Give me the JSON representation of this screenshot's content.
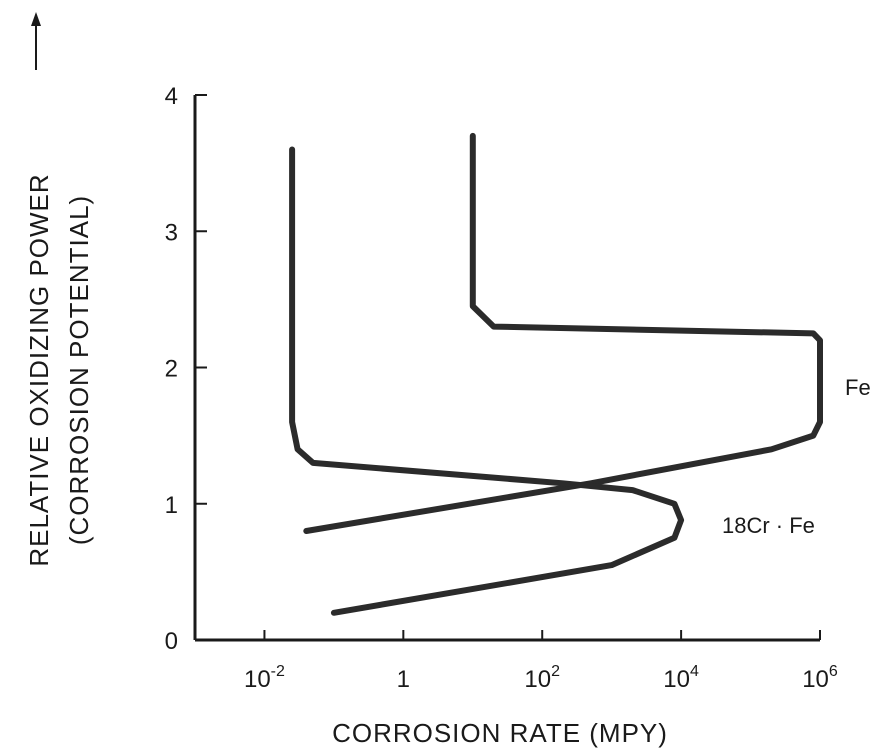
{
  "chart_data": {
    "type": "line",
    "xlabel": "CORROSION RATE (MPY)",
    "ylabel_lines": [
      "RELATIVE OXIDIZING POWER",
      "(CORROSION POTENTIAL)"
    ],
    "x_scale": "log",
    "xlim": [
      0.001,
      1000000
    ],
    "ylim": [
      0,
      4
    ],
    "x_ticks": [
      {
        "value": 0.01,
        "label": "10^-2"
      },
      {
        "value": 1,
        "label": "1"
      },
      {
        "value": 100,
        "label": "10^2"
      },
      {
        "value": 10000,
        "label": "10^4"
      },
      {
        "value": 1000000,
        "label": "10^6"
      }
    ],
    "y_ticks": [
      {
        "value": 0,
        "label": "0"
      },
      {
        "value": 1,
        "label": "1"
      },
      {
        "value": 2,
        "label": "2"
      },
      {
        "value": 3,
        "label": "3"
      },
      {
        "value": 4,
        "label": "4"
      }
    ],
    "grid": false,
    "series": [
      {
        "name": "Fe",
        "points": [
          {
            "x": 0.04,
            "y": 0.8
          },
          {
            "x": 500,
            "y": 1.15
          },
          {
            "x": 200000,
            "y": 1.4
          },
          {
            "x": 800000,
            "y": 1.5
          },
          {
            "x": 1000000,
            "y": 1.6
          },
          {
            "x": 1000000,
            "y": 2.2
          },
          {
            "x": 800000,
            "y": 2.25
          },
          {
            "x": 20,
            "y": 2.3
          },
          {
            "x": 10,
            "y": 2.45
          },
          {
            "x": 10,
            "y": 3.7
          }
        ]
      },
      {
        "name": "18Cr · Fe",
        "points": [
          {
            "x": 0.1,
            "y": 0.2
          },
          {
            "x": 1000,
            "y": 0.55
          },
          {
            "x": 8000,
            "y": 0.75
          },
          {
            "x": 10000,
            "y": 0.88
          },
          {
            "x": 8000,
            "y": 1.0
          },
          {
            "x": 2000,
            "y": 1.1
          },
          {
            "x": 200,
            "y": 1.15
          },
          {
            "x": 0.05,
            "y": 1.3
          },
          {
            "x": 0.03,
            "y": 1.4
          },
          {
            "x": 0.025,
            "y": 1.6
          },
          {
            "x": 0.025,
            "y": 3.6
          }
        ]
      }
    ]
  }
}
